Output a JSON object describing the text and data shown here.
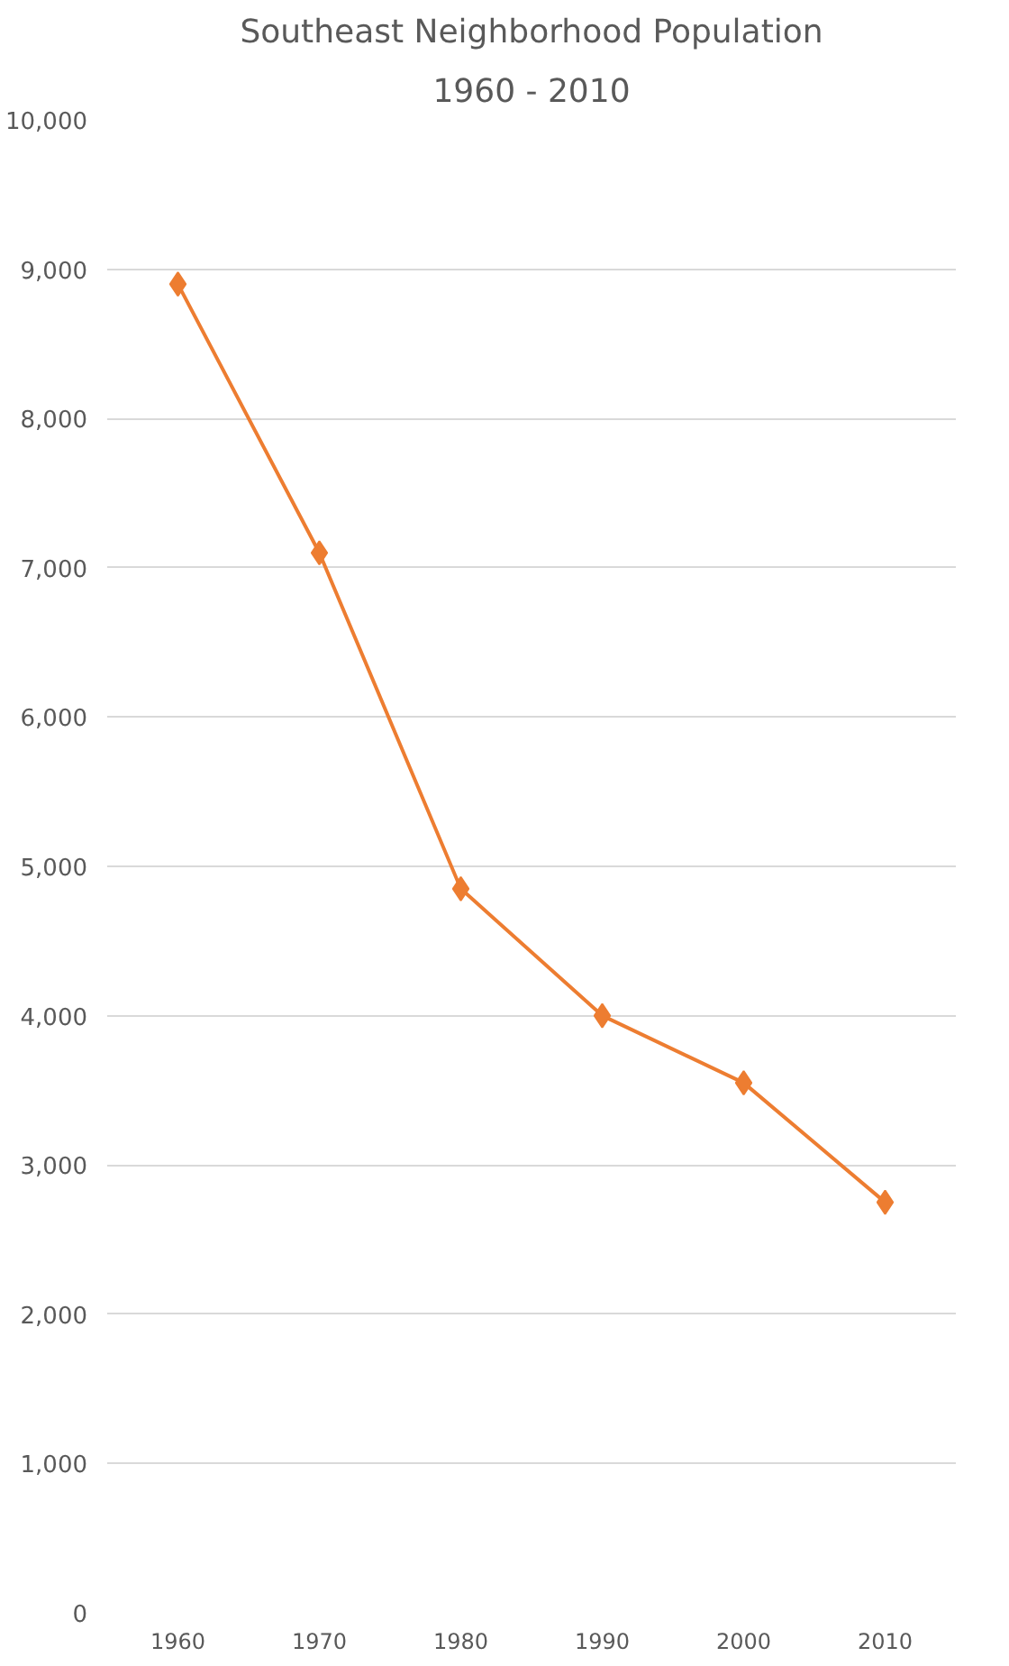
{
  "chart_data": {
    "type": "line",
    "title": "Southeast Neighborhood Population",
    "subtitle": "1960 - 2010",
    "categories": [
      "1960",
      "1970",
      "1980",
      "1990",
      "2000",
      "2010"
    ],
    "series": [
      {
        "color": "#ed7d31",
        "values": [
          8900,
          7100,
          4850,
          4000,
          3550,
          2750
        ]
      }
    ],
    "ylim": [
      0,
      10000
    ],
    "yticks": [
      0,
      {
        "value": 1000,
        "label": "1,000"
      },
      {
        "value": 2000,
        "label": "2,000"
      },
      {
        "value": 3000,
        "label": "3,000"
      },
      {
        "value": 4000,
        "label": "4,000"
      },
      {
        "value": 5000,
        "label": "5,000"
      },
      {
        "value": 6000,
        "label": "6,000"
      },
      {
        "value": 7000,
        "label": "7,000"
      },
      {
        "value": 8000,
        "label": "8,000"
      },
      {
        "value": 9000,
        "label": "9,000"
      },
      {
        "value": 10000,
        "label": "10,000"
      }
    ],
    "grid": "y",
    "marker": "diamond",
    "line_style": "solid"
  }
}
